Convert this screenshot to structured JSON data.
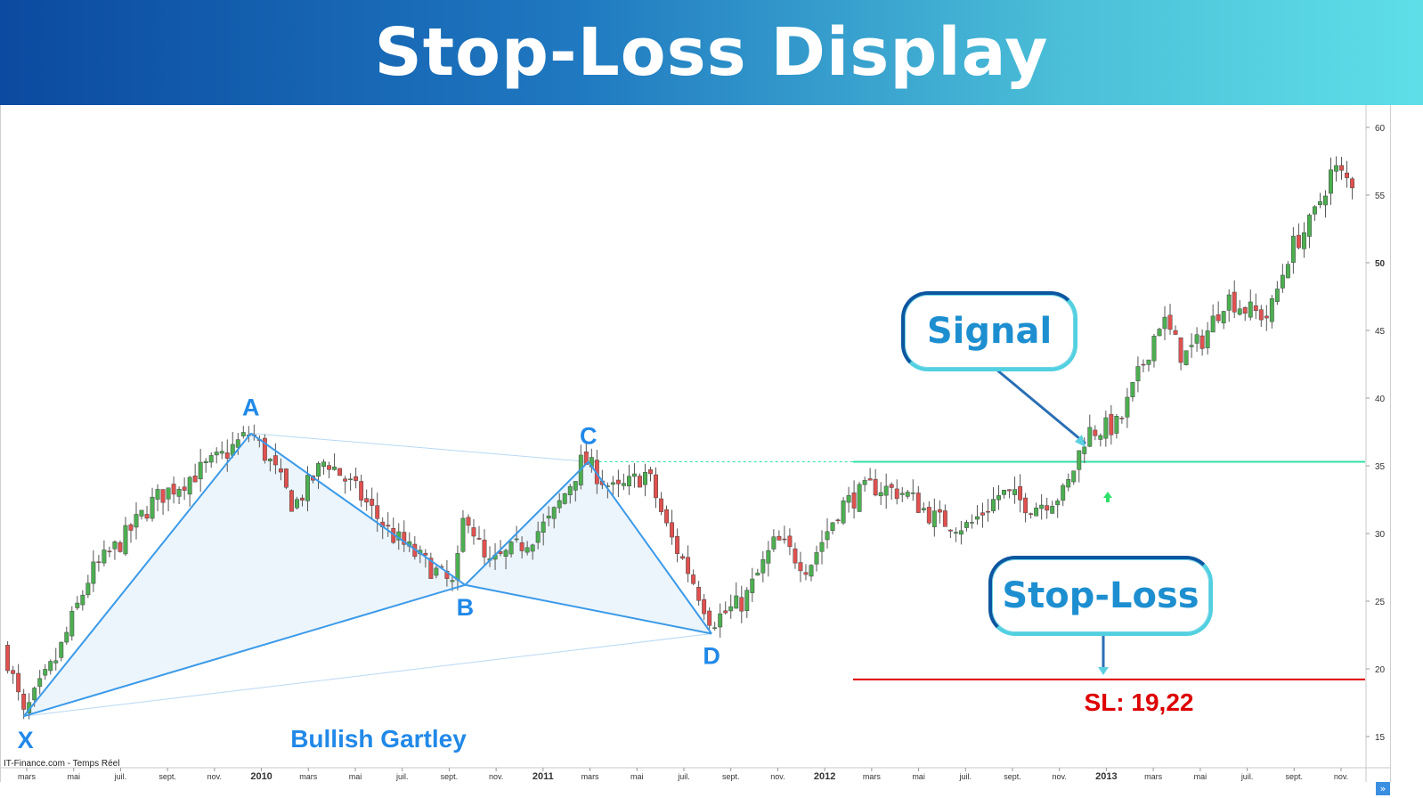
{
  "banner": {
    "title": "Stop-Loss Display"
  },
  "callouts": {
    "signal": "Signal",
    "stop_loss": "Stop-Loss"
  },
  "source_label": "IT-Finance.com - Temps Réel",
  "colors": {
    "up": "#4caf50",
    "down": "#e0514f",
    "pattern": "#3b9ae8",
    "signal_line": "#2ee0a0",
    "stop_line": "#e00000",
    "sl_text": "#dd0000"
  },
  "chart_data": {
    "type": "candlestick",
    "title": "",
    "ylim": [
      13,
      61
    ],
    "y_ticks": [
      "15",
      "20",
      "25",
      "30",
      "35",
      "40",
      "45",
      "50",
      "55",
      "60"
    ],
    "x_ticks": [
      "mars",
      "mai",
      "juil.",
      "sept.",
      "nov.",
      "2010",
      "mars",
      "mai",
      "juil.",
      "sept.",
      "nov.",
      "2011",
      "mars",
      "mai",
      "juil.",
      "sept.",
      "nov.",
      "2012",
      "mars",
      "mai",
      "juil.",
      "sept.",
      "nov.",
      "2013",
      "mars",
      "mai",
      "juil.",
      "sept.",
      "nov."
    ],
    "x_tick_bold": [
      "2010",
      "2011",
      "2012",
      "2013"
    ],
    "price_path": [
      {
        "t": 0,
        "v": 21.5
      },
      {
        "t": 1.8,
        "v": 16.5
      },
      {
        "t": 5,
        "v": 21
      },
      {
        "t": 8,
        "v": 27
      },
      {
        "t": 11,
        "v": 29.5
      },
      {
        "t": 14,
        "v": 32.5
      },
      {
        "t": 17,
        "v": 34
      },
      {
        "t": 20,
        "v": 35.5
      },
      {
        "t": 23,
        "v": 37.5
      },
      {
        "t": 25,
        "v": 35
      },
      {
        "t": 27,
        "v": 32
      },
      {
        "t": 30,
        "v": 35.5
      },
      {
        "t": 33,
        "v": 33
      },
      {
        "t": 36,
        "v": 30
      },
      {
        "t": 39,
        "v": 28
      },
      {
        "t": 42,
        "v": 26
      },
      {
        "t": 43,
        "v": 32
      },
      {
        "t": 45,
        "v": 27.5
      },
      {
        "t": 48,
        "v": 29
      },
      {
        "t": 51,
        "v": 31
      },
      {
        "t": 54,
        "v": 35.5
      },
      {
        "t": 57,
        "v": 33
      },
      {
        "t": 60,
        "v": 34.5
      },
      {
        "t": 62,
        "v": 30
      },
      {
        "t": 64,
        "v": 27
      },
      {
        "t": 66,
        "v": 23.5
      },
      {
        "t": 69,
        "v": 25
      },
      {
        "t": 72,
        "v": 29.5
      },
      {
        "t": 75,
        "v": 27.5
      },
      {
        "t": 78,
        "v": 32
      },
      {
        "t": 81,
        "v": 33.5
      },
      {
        "t": 84,
        "v": 33
      },
      {
        "t": 87,
        "v": 31
      },
      {
        "t": 90,
        "v": 30.5
      },
      {
        "t": 93,
        "v": 33
      },
      {
        "t": 96,
        "v": 32
      },
      {
        "t": 99,
        "v": 33
      },
      {
        "t": 101,
        "v": 37.5
      },
      {
        "t": 104,
        "v": 38
      },
      {
        "t": 106,
        "v": 42
      },
      {
        "t": 108,
        "v": 46
      },
      {
        "t": 110,
        "v": 43
      },
      {
        "t": 112,
        "v": 44.5
      },
      {
        "t": 114,
        "v": 47.5
      },
      {
        "t": 116,
        "v": 46.5
      },
      {
        "t": 118,
        "v": 46
      },
      {
        "t": 120,
        "v": 51
      },
      {
        "t": 122,
        "v": 53
      },
      {
        "t": 124,
        "v": 57
      },
      {
        "t": 125.5,
        "v": 56
      }
    ],
    "pattern": {
      "name": "Bullish Gartley",
      "points": [
        {
          "label": "X",
          "t": 1.8,
          "v": 16.5
        },
        {
          "label": "A",
          "t": 23,
          "v": 37.4
        },
        {
          "label": "B",
          "t": 43,
          "v": 26.2
        },
        {
          "label": "C",
          "t": 54.5,
          "v": 35.3
        },
        {
          "label": "D",
          "t": 66,
          "v": 22.6
        }
      ]
    },
    "signal_level": 35.3,
    "stop_loss_level": 19.22,
    "stop_loss_label": "SL: 19,22"
  }
}
